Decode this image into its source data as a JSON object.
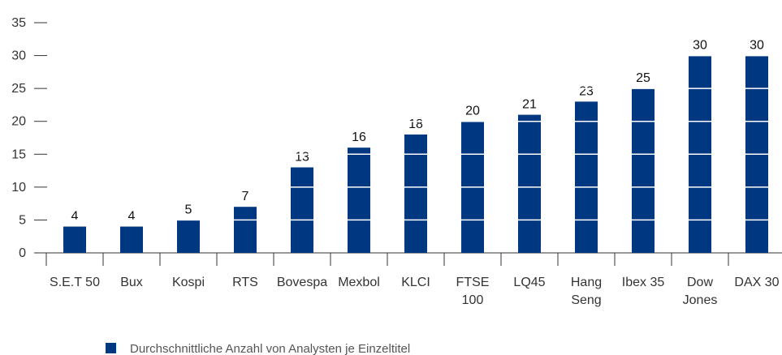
{
  "chart_data": {
    "type": "bar",
    "categories": [
      "S.E.T 50",
      "Bux",
      "Kospi",
      "RTS",
      "Bovespa",
      "Mexbol",
      "KLCI",
      "FTSE\n100",
      "LQ45",
      "Hang\nSeng",
      "Ibex 35",
      "Dow\nJones",
      "DAX 30"
    ],
    "series": [
      {
        "name": "Durchschnittliche Anzahl von Analysten je Einzeltitel",
        "color": "#003781",
        "values": [
          4,
          4,
          5,
          7,
          13,
          16,
          18,
          20,
          21,
          23,
          25,
          30,
          30
        ]
      }
    ],
    "ylim": [
      0,
      35
    ],
    "yticks": [
      0,
      5,
      10,
      15,
      20,
      25,
      30,
      35
    ],
    "grid": true,
    "legend": "bottom-left"
  }
}
